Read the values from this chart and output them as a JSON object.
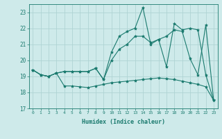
{
  "xlabel": "Humidex (Indice chaleur)",
  "bg_color": "#ceeaea",
  "grid_color": "#afd4d4",
  "line_color": "#1a7a6e",
  "x_ticks": [
    0,
    1,
    2,
    3,
    4,
    5,
    6,
    7,
    8,
    9,
    10,
    11,
    12,
    13,
    14,
    15,
    16,
    17,
    18,
    19,
    20,
    21,
    22,
    23
  ],
  "ylim": [
    17,
    23.5
  ],
  "xlim": [
    -0.5,
    23.5
  ],
  "yticks": [
    17,
    18,
    19,
    20,
    21,
    22,
    23
  ],
  "series": [
    {
      "x": [
        0,
        1,
        2,
        3,
        4,
        5,
        6,
        7,
        8,
        9,
        10,
        11,
        12,
        13,
        14,
        15,
        16,
        17,
        18,
        19,
        20,
        21,
        22,
        23
      ],
      "y": [
        19.4,
        19.1,
        19.0,
        19.2,
        18.4,
        18.4,
        18.35,
        18.3,
        18.4,
        18.5,
        18.6,
        18.65,
        18.7,
        18.75,
        18.8,
        18.85,
        18.9,
        18.85,
        18.8,
        18.7,
        18.6,
        18.5,
        18.35,
        17.5
      ]
    },
    {
      "x": [
        0,
        1,
        2,
        3,
        4,
        5,
        6,
        7,
        8,
        9,
        10,
        11,
        12,
        13,
        14,
        15,
        16,
        17,
        18,
        19,
        20,
        21,
        22,
        23
      ],
      "y": [
        19.4,
        19.1,
        19.0,
        19.2,
        19.3,
        19.3,
        19.3,
        19.3,
        19.5,
        18.8,
        20.0,
        20.7,
        21.0,
        21.5,
        21.5,
        21.1,
        21.3,
        21.5,
        21.9,
        21.8,
        20.1,
        19.1,
        22.2,
        17.5
      ]
    },
    {
      "x": [
        0,
        1,
        2,
        3,
        4,
        5,
        6,
        7,
        8,
        9,
        10,
        11,
        12,
        13,
        14,
        15,
        16,
        17,
        18,
        19,
        20,
        21,
        22,
        23
      ],
      "y": [
        19.4,
        19.1,
        19.0,
        19.2,
        19.3,
        19.3,
        19.3,
        19.3,
        19.5,
        18.8,
        20.5,
        21.5,
        21.8,
        22.0,
        23.3,
        21.0,
        21.3,
        19.6,
        22.3,
        21.9,
        22.0,
        21.9,
        19.1,
        17.5
      ]
    }
  ]
}
